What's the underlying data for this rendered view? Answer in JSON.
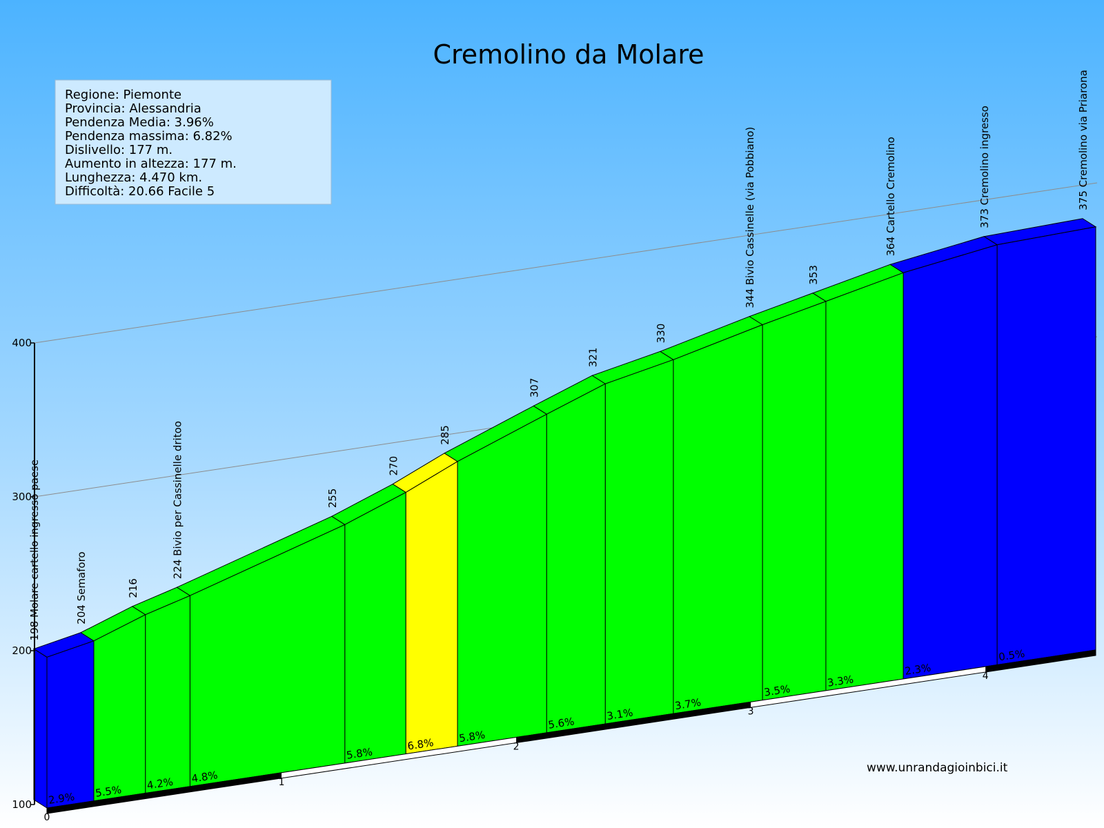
{
  "chart_data": {
    "type": "area",
    "title": "Cremolino da Molare",
    "info": [
      "Regione: Piemonte",
      "Provincia: Alessandria",
      "Pendenza Media: 3.96%",
      "Pendenza massima: 6.82%",
      "Dislivello:   177 m.",
      "Aumento in altezza:   177 m.",
      "Lunghezza:  4.470 km.",
      "Difficoltà: 20.66 Facile 5"
    ],
    "y_ticks": [
      "100",
      "200",
      "300",
      "400"
    ],
    "ylim": [
      100,
      400
    ],
    "x_ticks": [
      "0",
      "1",
      "2",
      "3",
      "4"
    ],
    "xlim": [
      0,
      4.47
    ],
    "waypoints": [
      {
        "km": 0,
        "elev": 198,
        "label": "198 Molare cartello ingresso paese"
      },
      {
        "km": 0.2,
        "elev": 204,
        "label": "204 Semaforo"
      },
      {
        "km": 0.42,
        "elev": 216,
        "label": "216"
      },
      {
        "km": 0.61,
        "elev": 224,
        "label": "224 Bivio per Cassinelle dritoo"
      },
      {
        "km": 1.27,
        "elev": 255,
        "label": "255"
      },
      {
        "km": 1.53,
        "elev": 270,
        "label": "270"
      },
      {
        "km": 1.75,
        "elev": 285,
        "label": "285"
      },
      {
        "km": 2.13,
        "elev": 307,
        "label": "307"
      },
      {
        "km": 2.38,
        "elev": 321,
        "label": "321"
      },
      {
        "km": 2.67,
        "elev": 330,
        "label": "330"
      },
      {
        "km": 3.05,
        "elev": 344,
        "label": "344 Bivio Cassinelle (via Pobbiano)"
      },
      {
        "km": 3.32,
        "elev": 353,
        "label": "353"
      },
      {
        "km": 3.65,
        "elev": 364,
        "label": "364 Cartello Cremolino"
      },
      {
        "km": 4.05,
        "elev": 373,
        "label": "373 Cremolino  ingresso"
      },
      {
        "km": 4.47,
        "elev": 375,
        "label": "375 Cremolino via Priarona"
      }
    ],
    "segments": [
      {
        "grade": "2.9%",
        "color": "#0000ff"
      },
      {
        "grade": "5.5%",
        "color": "#00ff00"
      },
      {
        "grade": "4.2%",
        "color": "#00ff00"
      },
      {
        "grade": "4.8%",
        "color": "#00ff00"
      },
      {
        "grade": "5.8%",
        "color": "#00ff00"
      },
      {
        "grade": "6.8%",
        "color": "#ffff00"
      },
      {
        "grade": "5.8%",
        "color": "#00ff00"
      },
      {
        "grade": "5.6%",
        "color": "#00ff00"
      },
      {
        "grade": "3.1%",
        "color": "#00ff00"
      },
      {
        "grade": "3.7%",
        "color": "#00ff00"
      },
      {
        "grade": "3.5%",
        "color": "#00ff00"
      },
      {
        "grade": "3.3%",
        "color": "#00ff00"
      },
      {
        "grade": "2.3%",
        "color": "#0000ff"
      },
      {
        "grade": "0.5%",
        "color": "#0000ff"
      }
    ],
    "grid": true,
    "site": "www.unrandagioinbici.it"
  }
}
